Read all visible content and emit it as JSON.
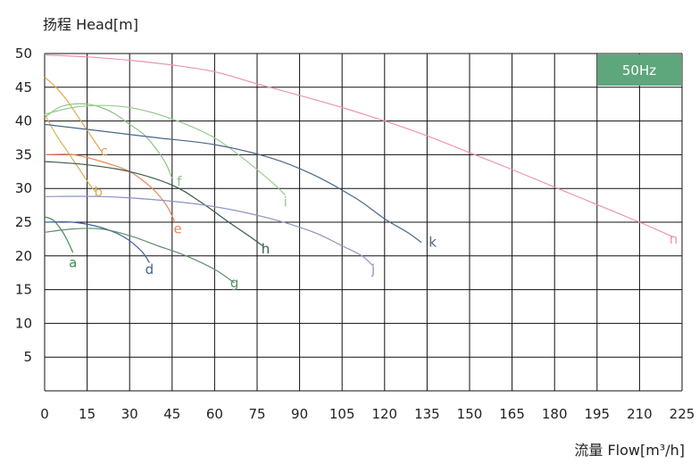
{
  "chart_data": {
    "type": "line",
    "title": "",
    "xlabel": "流量 Flow[m³/h]",
    "ylabel": "扬程 Head[m]",
    "xlim": [
      0,
      225
    ],
    "ylim": [
      0,
      50
    ],
    "x_ticks": [
      0,
      15,
      30,
      45,
      60,
      75,
      90,
      105,
      120,
      135,
      150,
      165,
      180,
      195,
      210,
      225
    ],
    "y_ticks": [
      5,
      10,
      15,
      20,
      25,
      30,
      35,
      40,
      45,
      50
    ],
    "grid": true,
    "badge": {
      "text": "50Hz",
      "color": "#5ea67b"
    },
    "series": [
      {
        "name": "a",
        "color": "#3e8f4f",
        "label_at": [
          10,
          19
        ],
        "x": [
          0,
          3,
          6,
          8,
          10
        ],
        "y": [
          25.8,
          25.3,
          23.8,
          22.3,
          20.5
        ]
      },
      {
        "name": "b",
        "color": "#d9b05a",
        "label_at": [
          19,
          29.5
        ],
        "x": [
          0,
          4,
          8,
          12,
          16,
          18
        ],
        "y": [
          41,
          38,
          35.5,
          33,
          30.5,
          29.5
        ]
      },
      {
        "name": "c",
        "color": "#e6a64e",
        "label_at": [
          21,
          35.5
        ],
        "x": [
          0,
          4,
          8,
          12,
          16,
          20
        ],
        "y": [
          46.5,
          45,
          43,
          40.5,
          38,
          35.5
        ]
      },
      {
        "name": "d",
        "color": "#3f5f95",
        "label_at": [
          37,
          18
        ],
        "x": [
          0,
          10,
          20,
          28,
          34,
          37
        ],
        "y": [
          25,
          25,
          24.2,
          22.8,
          20.8,
          19
        ]
      },
      {
        "name": "e",
        "color": "#ef8656",
        "label_at": [
          47,
          24
        ],
        "x": [
          0,
          10,
          20,
          30,
          38,
          43,
          46
        ],
        "y": [
          35,
          35,
          34,
          32.5,
          30,
          27.5,
          25
        ]
      },
      {
        "name": "f",
        "color": "#8fc187",
        "label_at": [
          47.5,
          31
        ],
        "x": [
          0,
          5,
          10,
          15,
          20,
          25,
          30,
          35,
          40,
          43,
          45
        ],
        "y": [
          40.5,
          42,
          42.5,
          42.5,
          42,
          41,
          39.5,
          38,
          35.5,
          33.5,
          31.5
        ]
      },
      {
        "name": "g",
        "color": "#5f8c6a",
        "label_at": [
          67,
          16
        ],
        "x": [
          0,
          10,
          20,
          30,
          40,
          50,
          60,
          67
        ],
        "y": [
          23.5,
          24,
          24,
          23,
          21.5,
          20,
          18,
          16
        ]
      },
      {
        "name": "h",
        "color": "#3a5a4a",
        "label_at": [
          78,
          21
        ],
        "x": [
          0,
          15,
          30,
          45,
          55,
          65,
          72,
          77
        ],
        "y": [
          34,
          33.5,
          32.5,
          30.5,
          28,
          25,
          23,
          21.5
        ]
      },
      {
        "name": "i",
        "color": "#98cc8e",
        "label_at": [
          85,
          28
        ],
        "x": [
          0,
          10,
          20,
          30,
          40,
          50,
          60,
          70,
          80,
          85
        ],
        "y": [
          41,
          42,
          42.3,
          42,
          41,
          39.5,
          37.5,
          34.5,
          31,
          29
        ]
      },
      {
        "name": "j",
        "color": "#8f93c2",
        "label_at": [
          116,
          18
        ],
        "x": [
          0,
          20,
          40,
          60,
          80,
          95,
          105,
          112,
          116
        ],
        "y": [
          28.8,
          28.8,
          28.3,
          27.3,
          25.5,
          23.5,
          21.5,
          20,
          18.5
        ]
      },
      {
        "name": "k",
        "color": "#4a6688",
        "label_at": [
          137,
          22
        ],
        "x": [
          0,
          20,
          40,
          60,
          80,
          95,
          110,
          120,
          128,
          133
        ],
        "y": [
          39.5,
          38.5,
          37.5,
          36.5,
          34.5,
          32,
          28.5,
          25.5,
          23.5,
          22
        ]
      },
      {
        "name": "n",
        "color": "#ee93b3",
        "label_at": [
          222,
          22.5
        ],
        "x": [
          0,
          15,
          30,
          45,
          60,
          75,
          90,
          105,
          120,
          135,
          150,
          165,
          180,
          195,
          210,
          222
        ],
        "y": [
          49.8,
          49.5,
          49,
          48.3,
          47.3,
          45.5,
          43.8,
          42,
          40,
          37.8,
          35.3,
          32.8,
          30.2,
          27.6,
          25,
          22.8
        ]
      }
    ]
  }
}
